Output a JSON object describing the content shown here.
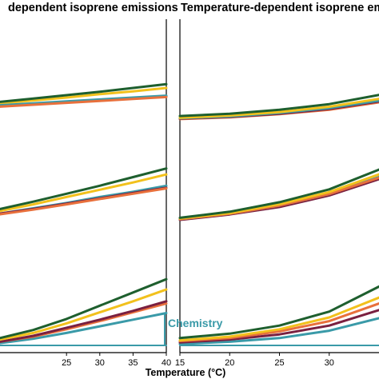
{
  "colors": {
    "dark_green": "#1e5f2e",
    "yellow": "#f2c11c",
    "orange": "#e8703c",
    "maroon": "#7a2040",
    "teal": "#3a9aa8",
    "axis": "#000000"
  },
  "chart_data": [
    {
      "type": "line",
      "title": "dependent isoprene emissions",
      "xlabel": "Temperature (°C)",
      "ylabel": "",
      "xlim": [
        15,
        40
      ],
      "xticks": [
        25,
        30,
        35,
        40
      ],
      "xticklabels": [
        "25",
        "30",
        "35",
        "40"
      ],
      "grid": false,
      "annotation": "Chemistry",
      "rows": [
        {
          "ylim": [
            0,
            1
          ],
          "series": [
            {
              "color": "#f2c11c",
              "x": [
                15,
                20,
                25,
                30,
                35,
                40
              ],
              "y": [
                0.18,
                0.24,
                0.3,
                0.37,
                0.43,
                0.5
              ]
            },
            {
              "color": "#7a2040",
              "x": [
                15,
                20,
                25,
                30,
                35,
                40
              ],
              "y": [
                0.12,
                0.16,
                0.2,
                0.24,
                0.28,
                0.33
              ]
            },
            {
              "color": "#3a9aa8",
              "x": [
                15,
                20,
                25,
                30,
                35,
                40
              ],
              "y": [
                0.14,
                0.18,
                0.22,
                0.26,
                0.3,
                0.34
              ]
            },
            {
              "color": "#e8703c",
              "x": [
                15,
                20,
                25,
                30,
                35,
                40
              ],
              "y": [
                0.11,
                0.15,
                0.19,
                0.23,
                0.27,
                0.31
              ]
            },
            {
              "color": "#1e5f2e",
              "x": [
                15,
                20,
                25,
                30,
                35,
                40
              ],
              "y": [
                0.21,
                0.28,
                0.35,
                0.42,
                0.5,
                0.58
              ]
            }
          ]
        },
        {
          "ylim": [
            0,
            1
          ],
          "series": [
            {
              "color": "#f2c11c",
              "x": [
                15,
                20,
                25,
                30,
                35,
                40
              ],
              "y": [
                0.05,
                0.15,
                0.26,
                0.37,
                0.48,
                0.6
              ]
            },
            {
              "color": "#3a9aa8",
              "x": [
                15,
                20,
                25,
                30,
                35,
                40
              ],
              "y": [
                0.01,
                0.09,
                0.17,
                0.26,
                0.34,
                0.43
              ]
            },
            {
              "color": "#7a2040",
              "x": [
                15,
                20,
                25,
                30,
                35,
                40
              ],
              "y": [
                0.01,
                0.08,
                0.16,
                0.24,
                0.32,
                0.4
              ]
            },
            {
              "color": "#e8703c",
              "x": [
                15,
                20,
                25,
                30,
                35,
                40
              ],
              "y": [
                0.0,
                0.07,
                0.15,
                0.23,
                0.31,
                0.39
              ]
            },
            {
              "color": "#1e5f2e",
              "x": [
                15,
                20,
                25,
                30,
                35,
                40
              ],
              "y": [
                0.08,
                0.19,
                0.31,
                0.43,
                0.56,
                0.69
              ]
            }
          ]
        },
        {
          "ylim": [
            0,
            1
          ],
          "series": [
            {
              "color": "#3a9aa8",
              "x": [
                15,
                20,
                25,
                30,
                35,
                40
              ],
              "y": [
                0.0,
                0.0,
                0.0,
                0.0,
                0.0,
                0.0
              ]
            },
            {
              "color": "#3a9aa8",
              "x": [
                15,
                20,
                25,
                30,
                35,
                40
              ],
              "y": [
                0.03,
                0.09,
                0.17,
                0.26,
                0.35,
                0.44
              ]
            },
            {
              "color": "#e8703c",
              "x": [
                15,
                20,
                25,
                30,
                35,
                40
              ],
              "y": [
                0.05,
                0.12,
                0.22,
                0.33,
                0.45,
                0.57
              ]
            },
            {
              "color": "#7a2040",
              "x": [
                15,
                20,
                25,
                30,
                35,
                40
              ],
              "y": [
                0.05,
                0.13,
                0.24,
                0.35,
                0.47,
                0.6
              ]
            },
            {
              "color": "#f2c11c",
              "x": [
                15,
                20,
                25,
                30,
                35,
                40
              ],
              "y": [
                0.08,
                0.17,
                0.3,
                0.45,
                0.6,
                0.76
              ]
            },
            {
              "color": "#1e5f2e",
              "x": [
                15,
                20,
                25,
                30,
                35,
                40
              ],
              "y": [
                0.1,
                0.21,
                0.36,
                0.54,
                0.72,
                0.9
              ]
            }
          ]
        }
      ]
    },
    {
      "type": "line",
      "title": "Temperature-dependent isoprene emiss",
      "xlabel": "",
      "ylabel": "",
      "xlim": [
        15,
        35
      ],
      "xticks": [
        15,
        20,
        25,
        30
      ],
      "xticklabels": [
        "15",
        "20",
        "25",
        "30"
      ],
      "grid": false,
      "rows": [
        {
          "ylim": [
            0,
            1
          ],
          "series": [
            {
              "color": "#e8703c",
              "x": [
                15,
                20,
                25,
                30,
                35
              ],
              "y": [
                0.02,
                0.06,
                0.13,
                0.23,
                0.4
              ]
            },
            {
              "color": "#7a2040",
              "x": [
                15,
                20,
                25,
                30,
                35
              ],
              "y": [
                0.03,
                0.07,
                0.14,
                0.25,
                0.42
              ]
            },
            {
              "color": "#3a9aa8",
              "x": [
                15,
                20,
                25,
                30,
                35
              ],
              "y": [
                0.04,
                0.08,
                0.16,
                0.27,
                0.44
              ]
            },
            {
              "color": "#f2c11c",
              "x": [
                15,
                20,
                25,
                30,
                35
              ],
              "y": [
                0.05,
                0.1,
                0.18,
                0.3,
                0.48
              ]
            },
            {
              "color": "#1e5f2e",
              "x": [
                15,
                20,
                25,
                30,
                35
              ],
              "y": [
                0.09,
                0.14,
                0.23,
                0.36,
                0.57
              ]
            }
          ]
        },
        {
          "ylim": [
            0,
            1
          ],
          "series": [
            {
              "color": "#7a2040",
              "x": [
                15,
                20,
                25,
                30,
                35
              ],
              "y": [
                0.0,
                0.08,
                0.19,
                0.36,
                0.6
              ]
            },
            {
              "color": "#3a9aa8",
              "x": [
                15,
                20,
                25,
                30,
                35
              ],
              "y": [
                0.01,
                0.09,
                0.21,
                0.38,
                0.63
              ]
            },
            {
              "color": "#e8703c",
              "x": [
                15,
                20,
                25,
                30,
                35
              ],
              "y": [
                0.01,
                0.09,
                0.21,
                0.38,
                0.62
              ]
            },
            {
              "color": "#f2c11c",
              "x": [
                15,
                20,
                25,
                30,
                35
              ],
              "y": [
                0.02,
                0.1,
                0.23,
                0.41,
                0.67
              ]
            },
            {
              "color": "#1e5f2e",
              "x": [
                15,
                20,
                25,
                30,
                35
              ],
              "y": [
                0.03,
                0.12,
                0.26,
                0.45,
                0.74
              ]
            }
          ]
        },
        {
          "ylim": [
            0,
            1
          ],
          "series": [
            {
              "color": "#3a9aa8",
              "x": [
                15,
                20,
                25,
                30,
                35
              ],
              "y": [
                0.0,
                0.0,
                0.0,
                0.0,
                0.0
              ]
            },
            {
              "color": "#3a9aa8",
              "x": [
                15,
                20,
                25,
                30,
                35
              ],
              "y": [
                0.02,
                0.05,
                0.1,
                0.2,
                0.37
              ]
            },
            {
              "color": "#7a2040",
              "x": [
                15,
                20,
                25,
                30,
                35
              ],
              "y": [
                0.04,
                0.08,
                0.15,
                0.27,
                0.48
              ]
            },
            {
              "color": "#e8703c",
              "x": [
                15,
                20,
                25,
                30,
                35
              ],
              "y": [
                0.06,
                0.1,
                0.19,
                0.33,
                0.57
              ]
            },
            {
              "color": "#f2c11c",
              "x": [
                15,
                20,
                25,
                30,
                35
              ],
              "y": [
                0.07,
                0.12,
                0.22,
                0.38,
                0.65
              ]
            },
            {
              "color": "#1e5f2e",
              "x": [
                15,
                20,
                25,
                30,
                35
              ],
              "y": [
                0.1,
                0.16,
                0.27,
                0.46,
                0.8
              ]
            }
          ]
        }
      ]
    }
  ]
}
